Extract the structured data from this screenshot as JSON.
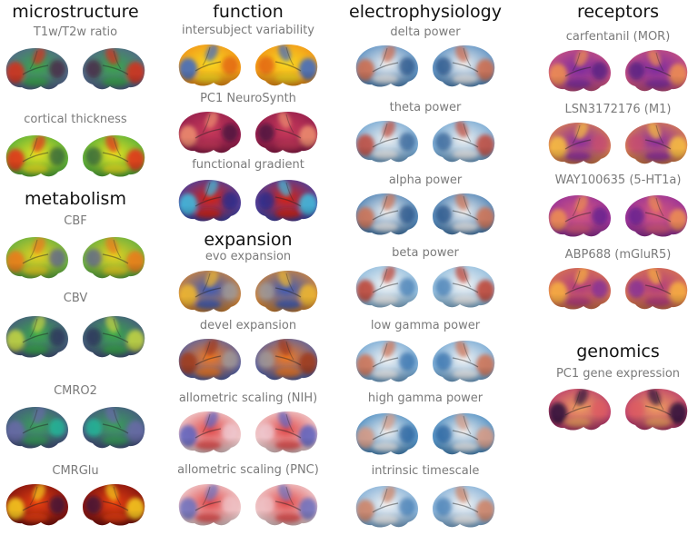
{
  "columns": [
    {
      "sections": [
        {
          "title": "microstructure",
          "maps": [
            {
              "label": "T1w/T2w ratio",
              "colors": [
                "#5a5a9a",
                "#3aa64a",
                "#d8301a",
                "#4a1a40"
              ]
            },
            {
              "label": "cortical thickness",
              "colors": [
                "#3aa640",
                "#e8e020",
                "#e83018",
                "#2a5a3a"
              ]
            }
          ]
        },
        {
          "title": "metabolism",
          "maps": [
            {
              "label": "CBF",
              "colors": [
                "#48a848",
                "#e8d020",
                "#f07818",
                "#5a5a9a"
              ]
            },
            {
              "label": "CBV",
              "colors": [
                "#4a4a8a",
                "#3aa84a",
                "#c8d840",
                "#2a2a5a"
              ]
            },
            {
              "label": "CMRO2",
              "colors": [
                "#4a4a8a",
                "#3aa05a",
                "#6a6aa8",
                "#20c0a0"
              ]
            },
            {
              "label": "CMRGlu",
              "colors": [
                "#6a0a10",
                "#e84010",
                "#f8d020",
                "#301040"
              ]
            }
          ]
        }
      ]
    },
    {
      "sections": [
        {
          "title": "function",
          "maps": [
            {
              "label": "intersubject variability",
              "colors": [
                "#f08818",
                "#f8d820",
                "#3a6ac8",
                "#e05a10"
              ]
            },
            {
              "label": "PC1 NeuroSynth",
              "colors": [
                "#8a1a4a",
                "#c83a5a",
                "#f09070",
                "#3a0a3a"
              ]
            },
            {
              "label": "functional gradient",
              "colors": [
                "#2a4ac0",
                "#d82010",
                "#40c0e0",
                "#1a2a90"
              ]
            }
          ]
        },
        {
          "title": "expansion",
          "maps": [
            {
              "label": "evo expansion",
              "colors": [
                "#f09020",
                "#3a58b8",
                "#f0b830",
                "#a0a0a0"
              ]
            },
            {
              "label": "devel expansion",
              "colors": [
                "#3a60c0",
                "#f07820",
                "#a03818",
                "#a0a0a0"
              ]
            },
            {
              "label": "allometric scaling (NIH)",
              "colors": [
                "#f4eef0",
                "#e04848",
                "#5a60c0",
                "#f0d0d8"
              ]
            },
            {
              "label": "allometric scaling (PNC)",
              "colors": [
                "#f4eef0",
                "#e04848",
                "#6a70c0",
                "#f0c8cc"
              ]
            }
          ]
        }
      ]
    },
    {
      "sections": [
        {
          "title": "electrophysiology",
          "maps": [
            {
              "label": "delta power",
              "colors": [
                "#3a7ab8",
                "#f0f0f0",
                "#d06a48",
                "#1a4a80"
              ]
            },
            {
              "label": "theta power",
              "colors": [
                "#5a98cc",
                "#f0f0f0",
                "#c04838",
                "#2a5a90"
              ]
            },
            {
              "label": "alpha power",
              "colors": [
                "#2a6aa8",
                "#f0f0f0",
                "#d07050",
                "#1a4a80"
              ]
            },
            {
              "label": "beta power",
              "colors": [
                "#7ab0d8",
                "#f4f4f4",
                "#c04030",
                "#3a78b0"
              ]
            },
            {
              "label": "low gamma power",
              "colors": [
                "#5a98cc",
                "#f4f4f4",
                "#d07050",
                "#2a6aa8"
              ]
            },
            {
              "label": "high gamma power",
              "colors": [
                "#2a78b8",
                "#f0f0f0",
                "#d89880",
                "#1a5a98"
              ]
            },
            {
              "label": "intrinsic timescale",
              "colors": [
                "#6aa0d0",
                "#f4f4f4",
                "#d08060",
                "#3a78b0"
              ]
            }
          ]
        }
      ]
    },
    {
      "sections": [
        {
          "title": "receptors",
          "maps": [
            {
              "label": "carfentanil (MOR)",
              "colors": [
                "#d85a7a",
                "#7a2aa0",
                "#f09050",
                "#4a1a80"
              ]
            },
            {
              "label": "LSN3172176 (M1)",
              "colors": [
                "#e89040",
                "#8a2aa0",
                "#f8c040",
                "#c84a70"
              ]
            },
            {
              "label": "WAY100635 (5-HT1a)",
              "colors": [
                "#8a2aa0",
                "#d85a7a",
                "#f09050",
                "#5a1a90"
              ]
            },
            {
              "label": "ABP688 (mGluR5)",
              "colors": [
                "#e08048",
                "#b03a80",
                "#f8b040",
                "#7a2aa0"
              ]
            }
          ]
        },
        {
          "title": "genomics",
          "maps": [
            {
              "label": "PC1 gene expression",
              "colors": [
                "#b02a70",
                "#f0a060",
                "#2a0a3a",
                "#e05a60"
              ]
            }
          ]
        }
      ]
    }
  ]
}
